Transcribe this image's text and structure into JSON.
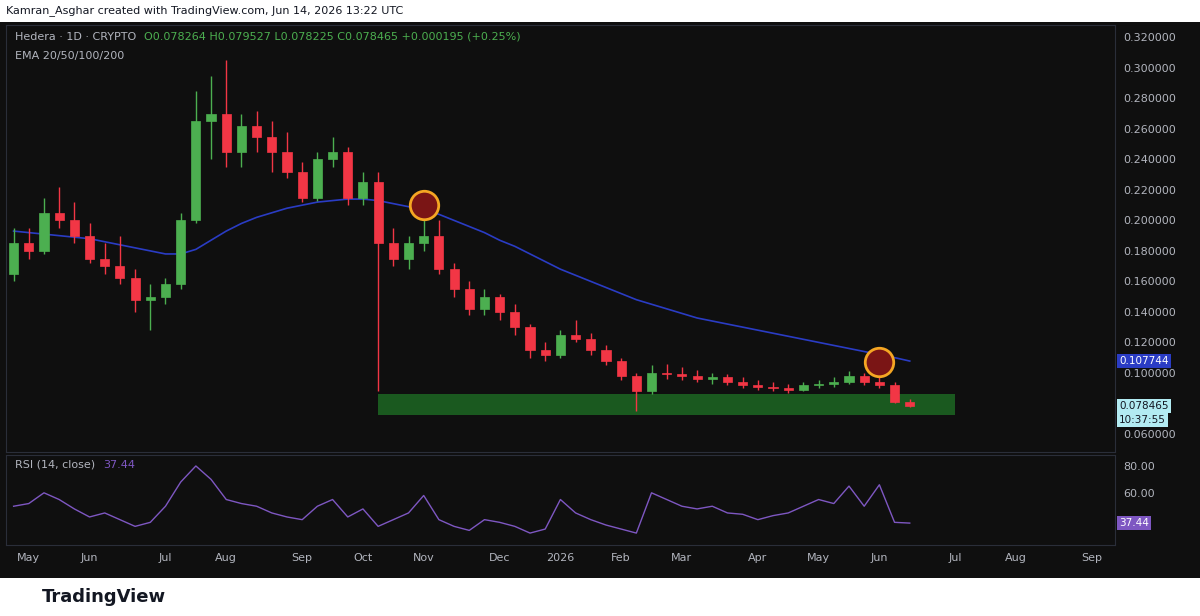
{
  "header": {
    "credit": "Kamran_Asghar created with TradingView.com, Jun 14, 2026 13:22 UTC",
    "footer": "TradingView"
  },
  "chart_data": [
    {
      "type": "candlestick",
      "title": "Hedera · 1D · CRYPTO",
      "subtitle": "O0.078264 H0.079527 L0.078225 C0.078465 +0.000195 (+0.25%)",
      "categories": [
        null,
        "May",
        null,
        null,
        null,
        "Jun",
        null,
        null,
        null,
        null,
        "Jul",
        null,
        null,
        null,
        "Aug",
        null,
        null,
        null,
        null,
        "Sep",
        null,
        null,
        null,
        "Oct",
        null,
        null,
        null,
        "Nov",
        null,
        null,
        null,
        null,
        "Dec",
        null,
        null,
        null,
        "2026",
        null,
        null,
        null,
        "Feb",
        null,
        null,
        null,
        "Mar",
        null,
        null,
        null,
        null,
        "Apr",
        null,
        null,
        null,
        "May",
        null,
        null,
        null,
        "Jun",
        null,
        null,
        null,
        null,
        "Jul",
        null,
        null,
        null,
        "Aug",
        null,
        null,
        null,
        null,
        "Sep",
        null
      ],
      "series": [
        {
          "type": "candlestick",
          "colors": [
            "#4caf50",
            "#f23645"
          ],
          "open": [
            0.165,
            0.185,
            0.18,
            0.205,
            0.2,
            0.19,
            0.175,
            0.17,
            0.162,
            0.148,
            0.15,
            0.158,
            0.2,
            0.265,
            0.27,
            0.245,
            0.262,
            0.255,
            0.245,
            0.232,
            0.215,
            0.24,
            0.245,
            0.215,
            0.225,
            0.185,
            0.175,
            0.185,
            0.19,
            0.168,
            0.155,
            0.142,
            0.15,
            0.14,
            0.13,
            0.115,
            0.112,
            0.125,
            0.122,
            0.115,
            0.108,
            0.098,
            0.088,
            0.1,
            0.099,
            0.098,
            0.096,
            0.097,
            0.094,
            0.092,
            0.091,
            0.09,
            0.089,
            0.092,
            0.093,
            0.094,
            0.098,
            0.094,
            0.092,
            0.081,
            null,
            null,
            null,
            null,
            null,
            null,
            null,
            null,
            null,
            null,
            null,
            null,
            null
          ],
          "high": [
            0.195,
            0.195,
            0.215,
            0.222,
            0.212,
            0.198,
            0.185,
            0.19,
            0.168,
            0.158,
            0.162,
            0.205,
            0.285,
            0.295,
            0.305,
            0.27,
            0.272,
            0.265,
            0.258,
            0.238,
            0.245,
            0.255,
            0.248,
            0.232,
            0.232,
            0.195,
            0.19,
            0.212,
            0.2,
            0.172,
            0.16,
            0.155,
            0.152,
            0.145,
            0.132,
            0.12,
            0.128,
            0.135,
            0.126,
            0.118,
            0.11,
            0.1,
            0.105,
            0.106,
            0.104,
            0.102,
            0.1,
            0.099,
            0.097,
            0.095,
            0.094,
            0.093,
            0.094,
            0.095,
            0.097,
            0.101,
            0.1,
            0.107,
            0.094,
            0.083,
            null,
            null,
            null,
            null,
            null,
            null,
            null,
            null,
            null,
            null,
            null,
            null,
            null
          ],
          "low": [
            0.16,
            0.175,
            0.178,
            0.195,
            0.185,
            0.172,
            0.165,
            0.158,
            0.14,
            0.128,
            0.145,
            0.155,
            0.198,
            0.24,
            0.235,
            0.235,
            0.245,
            0.232,
            0.228,
            0.212,
            0.213,
            0.235,
            0.21,
            0.21,
            0.088,
            0.17,
            0.168,
            0.18,
            0.165,
            0.15,
            0.138,
            0.138,
            0.135,
            0.125,
            0.11,
            0.108,
            0.11,
            0.12,
            0.112,
            0.105,
            0.095,
            0.075,
            0.086,
            0.096,
            0.095,
            0.094,
            0.093,
            0.092,
            0.09,
            0.089,
            0.088,
            0.087,
            0.088,
            0.09,
            0.091,
            0.093,
            0.092,
            0.09,
            0.08,
            0.0775,
            null,
            null,
            null,
            null,
            null,
            null,
            null,
            null,
            null,
            null,
            null,
            null,
            null
          ],
          "close": [
            0.185,
            0.18,
            0.205,
            0.2,
            0.19,
            0.175,
            0.17,
            0.162,
            0.148,
            0.15,
            0.158,
            0.2,
            0.265,
            0.27,
            0.245,
            0.262,
            0.255,
            0.245,
            0.232,
            0.215,
            0.24,
            0.245,
            0.215,
            0.225,
            0.185,
            0.175,
            0.185,
            0.19,
            0.168,
            0.155,
            0.142,
            0.15,
            0.14,
            0.13,
            0.115,
            0.112,
            0.125,
            0.122,
            0.115,
            0.108,
            0.098,
            0.088,
            0.1,
            0.099,
            0.098,
            0.096,
            0.097,
            0.094,
            0.092,
            0.091,
            0.09,
            0.089,
            0.092,
            0.093,
            0.094,
            0.098,
            0.094,
            0.092,
            0.081,
            0.078465,
            null,
            null,
            null,
            null,
            null,
            null,
            null,
            null,
            null,
            null,
            null,
            null,
            null
          ]
        },
        {
          "type": "line",
          "name": "EMA 20/50/100/200",
          "color": "#2a3cc4",
          "values": [
            0.193,
            0.192,
            0.191,
            0.19,
            0.189,
            0.188,
            0.186,
            0.184,
            0.182,
            0.18,
            0.178,
            0.178,
            0.181,
            0.187,
            0.193,
            0.198,
            0.202,
            0.205,
            0.208,
            0.21,
            0.212,
            0.213,
            0.214,
            0.214,
            0.213,
            0.211,
            0.209,
            0.207,
            0.204,
            0.2,
            0.196,
            0.192,
            0.187,
            0.183,
            0.178,
            0.173,
            0.168,
            0.164,
            0.16,
            0.156,
            0.152,
            0.148,
            0.145,
            0.142,
            0.139,
            0.136,
            0.134,
            0.132,
            0.13,
            0.128,
            0.126,
            0.124,
            0.122,
            0.12,
            0.118,
            0.116,
            0.114,
            0.112,
            0.11,
            0.107744,
            null,
            null,
            null,
            null,
            null,
            null,
            null,
            null,
            null,
            null,
            null,
            null,
            null
          ]
        }
      ],
      "ylim": [
        0.048,
        0.328
      ],
      "yticks": [
        {
          "value": 0.06,
          "label": "0.060000"
        },
        {
          "value": 0.1,
          "label": "0.100000"
        },
        {
          "value": 0.12,
          "label": "0.120000"
        },
        {
          "value": 0.14,
          "label": "0.140000"
        },
        {
          "value": 0.16,
          "label": "0.160000"
        },
        {
          "value": 0.18,
          "label": "0.180000"
        },
        {
          "value": 0.2,
          "label": "0.200000"
        },
        {
          "value": 0.22,
          "label": "0.220000"
        },
        {
          "value": 0.24,
          "label": "0.240000"
        },
        {
          "value": 0.26,
          "label": "0.260000"
        },
        {
          "value": 0.28,
          "label": "0.280000"
        },
        {
          "value": 0.3,
          "label": "0.300000"
        },
        {
          "value": 0.32,
          "label": "0.320000"
        }
      ],
      "grid": false,
      "tick_labels": "y",
      "zone": {
        "x": [
          24,
          62
        ],
        "y": [
          0.0725,
          0.086
        ],
        "color": "#1b5e20"
      },
      "highlights": [
        {
          "x": 27,
          "y": 0.21
        },
        {
          "x": 57,
          "y": 0.107
        }
      ],
      "price_tags": [
        {
          "value": 0.107744,
          "label": "0.107744",
          "color": "#2a3cc4"
        },
        {
          "value": 0.078465,
          "label": "0.078465",
          "sub": "10:37:55",
          "color": "#b2ebf2"
        }
      ]
    },
    {
      "type": "line",
      "title": "RSI (14, close)",
      "subtitle": "37.44",
      "categories": [
        null,
        "May",
        null,
        null,
        null,
        "Jun",
        null,
        null,
        null,
        null,
        "Jul",
        null,
        null,
        null,
        "Aug",
        null,
        null,
        null,
        null,
        "Sep",
        null,
        null,
        null,
        "Oct",
        null,
        null,
        null,
        "Nov",
        null,
        null,
        null,
        null,
        "Dec",
        null,
        null,
        null,
        "2026",
        null,
        null,
        null,
        "Feb",
        null,
        null,
        null,
        "Mar",
        null,
        null,
        null,
        null,
        "Apr",
        null,
        null,
        null,
        "May",
        null,
        null,
        null,
        "Jun",
        null,
        null,
        null,
        null,
        "Jul",
        null,
        null,
        null,
        "Aug",
        null,
        null,
        null,
        null,
        "Sep",
        null
      ],
      "series": [
        {
          "color": "#7e57c2",
          "values": [
            50,
            52,
            60,
            55,
            48,
            42,
            45,
            40,
            35,
            38,
            50,
            68,
            80,
            70,
            55,
            52,
            50,
            45,
            42,
            40,
            50,
            55,
            42,
            48,
            35,
            40,
            45,
            58,
            40,
            35,
            32,
            40,
            38,
            35,
            30,
            33,
            55,
            45,
            40,
            36,
            33,
            30,
            60,
            55,
            50,
            48,
            50,
            45,
            44,
            40,
            43,
            45,
            50,
            55,
            52,
            65,
            50,
            66,
            38,
            37.44,
            null,
            null,
            null,
            null,
            null,
            null,
            null,
            null,
            null,
            null,
            null,
            null,
            null
          ]
        }
      ],
      "ylim": [
        21,
        88
      ],
      "yticks": [
        {
          "value": 60,
          "label": "60.00"
        },
        {
          "value": 80,
          "label": "80.00"
        }
      ],
      "grid": false,
      "price_tags": [
        {
          "value": 37.44,
          "label": "37.44",
          "color": "#7e57c2"
        }
      ]
    }
  ]
}
